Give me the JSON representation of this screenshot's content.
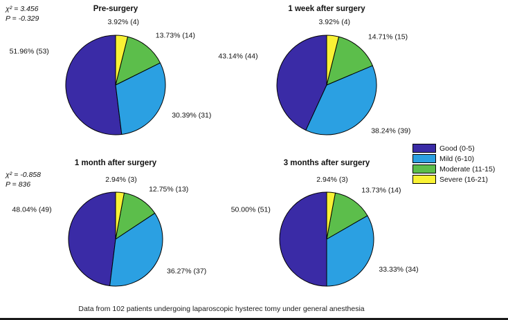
{
  "figure": {
    "footer": "Data from 102 patients undergoing laparoscopic hysterec tomy under general anesthesia",
    "background": "#ffffff"
  },
  "legend": {
    "position": "right",
    "entries": [
      {
        "label": "Good (0-5)",
        "color": "#3a2ba6"
      },
      {
        "label": "Mild (6-10)",
        "color": "#2ba0e2"
      },
      {
        "label": "Moderate (11-15)",
        "color": "#5cbe4b"
      },
      {
        "label": "Severe (16-21)",
        "color": "#f9f235"
      }
    ]
  },
  "chart_data": [
    {
      "type": "pie",
      "title": "Pre-surgery",
      "annotation_lines": [
        "χ² = 3.456",
        "P = -0.329"
      ],
      "start_angle": 90,
      "direction": "counterclockwise",
      "total": 102,
      "slices": [
        {
          "category": "Good (0-5)",
          "percent": 51.96,
          "count": 53,
          "label": "51.96% (53)",
          "label_angle": 153,
          "label_r": 1.5
        },
        {
          "category": "Mild (6-10)",
          "percent": 30.39,
          "count": 31,
          "label": "30.39% (31)"
        },
        {
          "category": "Moderate (11-15)",
          "percent": 13.73,
          "count": 14,
          "label": "13.73% (14)"
        },
        {
          "category": "Severe (16-21)",
          "percent": 3.92,
          "count": 4,
          "label": "3.92% (4)"
        }
      ]
    },
    {
      "type": "pie",
      "title": "1 week after surgery",
      "annotation_lines": [],
      "start_angle": 90,
      "direction": "counterclockwise",
      "total": 102,
      "slices": [
        {
          "category": "Good (0-5)",
          "percent": 43.14,
          "count": 44,
          "label": "43.14% (44)",
          "label_angle": 157,
          "label_r": 1.5
        },
        {
          "category": "Mild (6-10)",
          "percent": 38.24,
          "count": 39,
          "label": "38.24% (39)"
        },
        {
          "category": "Moderate (11-15)",
          "percent": 14.71,
          "count": 15,
          "label": "14.71% (15)"
        },
        {
          "category": "Severe (16-21)",
          "percent": 3.92,
          "count": 4,
          "label": "3.92% (4)"
        }
      ]
    },
    {
      "type": "pie",
      "title": "1 month after surgery",
      "annotation_lines": [
        "χ² = -0.858",
        "P = 836"
      ],
      "start_angle": 90,
      "direction": "counterclockwise",
      "total": 102,
      "slices": [
        {
          "category": "Good (0-5)",
          "percent": 48.04,
          "count": 49,
          "label": "48.04% (49)",
          "label_angle": 155,
          "label_r": 1.5
        },
        {
          "category": "Mild (6-10)",
          "percent": 36.27,
          "count": 37,
          "label": "36.27% (37)"
        },
        {
          "category": "Moderate (11-15)",
          "percent": 12.75,
          "count": 13,
          "label": "12.75% (13)"
        },
        {
          "category": "Severe (16-21)",
          "percent": 2.94,
          "count": 3,
          "label": "2.94% (3)"
        }
      ]
    },
    {
      "type": "pie",
      "title": "3 months after surgery",
      "annotation_lines": [],
      "start_angle": 90,
      "direction": "counterclockwise",
      "total": 102,
      "slices": [
        {
          "category": "Good (0-5)",
          "percent": 50.0,
          "count": 51,
          "label": "50.00% (51)",
          "label_angle": 152,
          "label_r": 1.35
        },
        {
          "category": "Mild (6-10)",
          "percent": 33.33,
          "count": 34,
          "label": "33.33% (34)"
        },
        {
          "category": "Moderate (11-15)",
          "percent": 13.73,
          "count": 14,
          "label": "13.73% (14)"
        },
        {
          "category": "Severe (16-21)",
          "percent": 2.94,
          "count": 3,
          "label": "2.94% (3)"
        }
      ]
    }
  ]
}
